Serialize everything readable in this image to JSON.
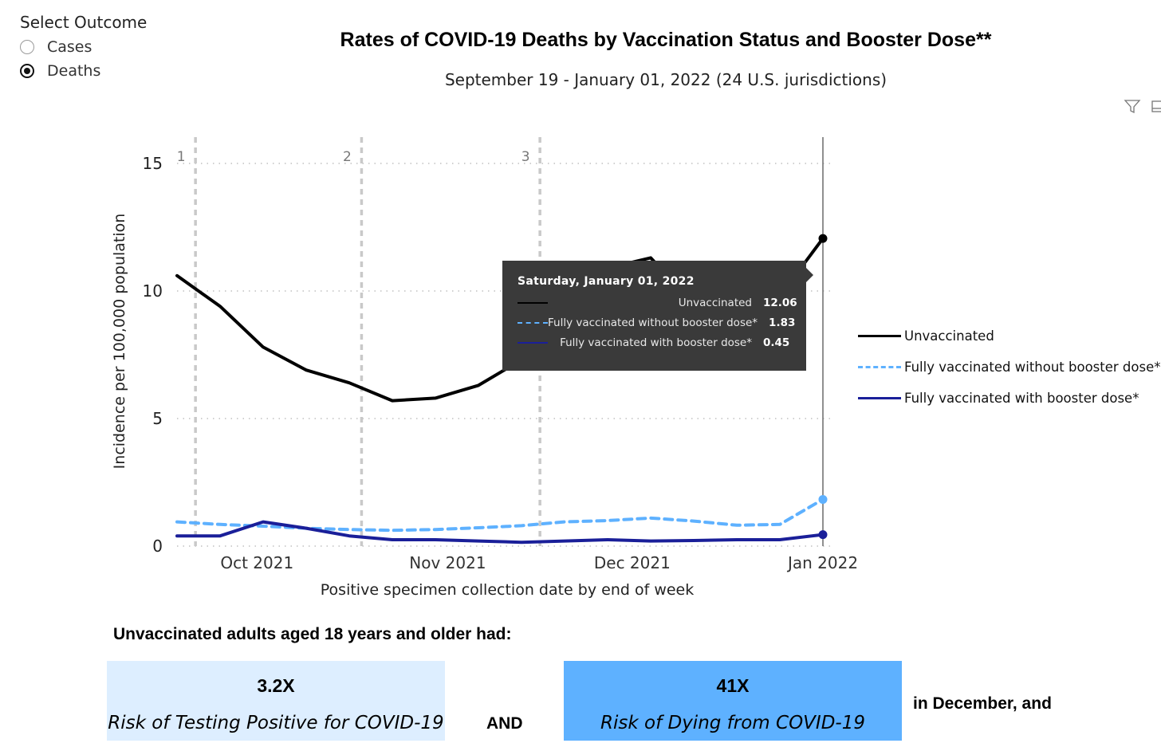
{
  "slicer": {
    "title": "Select Outcome",
    "options": [
      {
        "label": "Cases",
        "selected": false
      },
      {
        "label": "Deaths",
        "selected": true
      }
    ]
  },
  "icons": {
    "filter": "filter-icon",
    "expand": "focus-mode-icon"
  },
  "tooltip": {
    "date": "Saturday, January 01, 2022",
    "rows": [
      {
        "label": "Unvaccinated",
        "value": "12.06"
      },
      {
        "label": "Fully vaccinated without booster dose*",
        "value": "1.83"
      },
      {
        "label": "Fully vaccinated with booster dose*",
        "value": "0.45"
      }
    ]
  },
  "chart_data": {
    "type": "line",
    "title": "Rates of COVID-19 Deaths by Vaccination Status and Booster Dose**",
    "subtitle": "September 19 - January 01, 2022 (24 U.S. jurisdictions)",
    "xlabel": "Positive specimen collection date by end of week",
    "ylabel": "Incidence per 100,000 population",
    "ylim": [
      0,
      16
    ],
    "yticks": [
      0,
      5,
      10,
      15
    ],
    "xlim": [
      "2021-09-18",
      "2022-01-01"
    ],
    "xticks": [
      {
        "date": "2021-10-01",
        "label": "Oct 2021"
      },
      {
        "date": "2021-11-01",
        "label": "Nov 2021"
      },
      {
        "date": "2021-12-01",
        "label": "Dec 2021"
      },
      {
        "date": "2022-01-01",
        "label": "Jan 2022"
      }
    ],
    "reference_lines": [
      {
        "date": "2021-09-21",
        "label": "1"
      },
      {
        "date": "2021-10-18",
        "label": "2"
      },
      {
        "date": "2021-11-16",
        "label": "3"
      }
    ],
    "highlight_date": "2022-01-01",
    "x": [
      "2021-09-18",
      "2021-09-25",
      "2021-10-02",
      "2021-10-09",
      "2021-10-16",
      "2021-10-23",
      "2021-10-30",
      "2021-11-06",
      "2021-11-13",
      "2021-11-20",
      "2021-11-27",
      "2021-12-04",
      "2021-12-11",
      "2021-12-18",
      "2021-12-25",
      "2022-01-01"
    ],
    "series": [
      {
        "name": "Unvaccinated",
        "color": "#000000",
        "style": "solid",
        "values": [
          10.6,
          9.4,
          7.8,
          6.9,
          6.4,
          5.7,
          5.8,
          6.3,
          7.3,
          8.6,
          10.9,
          11.3,
          9.5,
          8.1,
          9.8,
          12.06
        ]
      },
      {
        "name": "Fully vaccinated without booster dose*",
        "color": "#5eb1ff",
        "style": "dashed",
        "values": [
          0.95,
          0.85,
          0.78,
          0.7,
          0.65,
          0.62,
          0.65,
          0.72,
          0.8,
          0.95,
          1.0,
          1.1,
          0.98,
          0.82,
          0.85,
          1.83
        ]
      },
      {
        "name": "Fully vaccinated with booster dose*",
        "color": "#1a1f99",
        "style": "solid",
        "values": [
          0.4,
          0.4,
          0.95,
          0.7,
          0.4,
          0.25,
          0.25,
          0.2,
          0.15,
          0.2,
          0.25,
          0.2,
          0.22,
          0.25,
          0.25,
          0.45
        ]
      }
    ],
    "legend": {
      "position": "right"
    },
    "grid": "dotted-horizontal"
  },
  "summary": {
    "heading": "Unvaccinated adults aged 18 years and older had:",
    "box1": {
      "value": "3.2X",
      "desc": "Risk of Testing Positive for COVID-19",
      "color": "#ddeeff"
    },
    "conj": "AND",
    "box2": {
      "value": "41X",
      "desc": "Risk of Dying from COVID-19",
      "color": "#5eb1ff"
    },
    "tail": "in December, and"
  }
}
